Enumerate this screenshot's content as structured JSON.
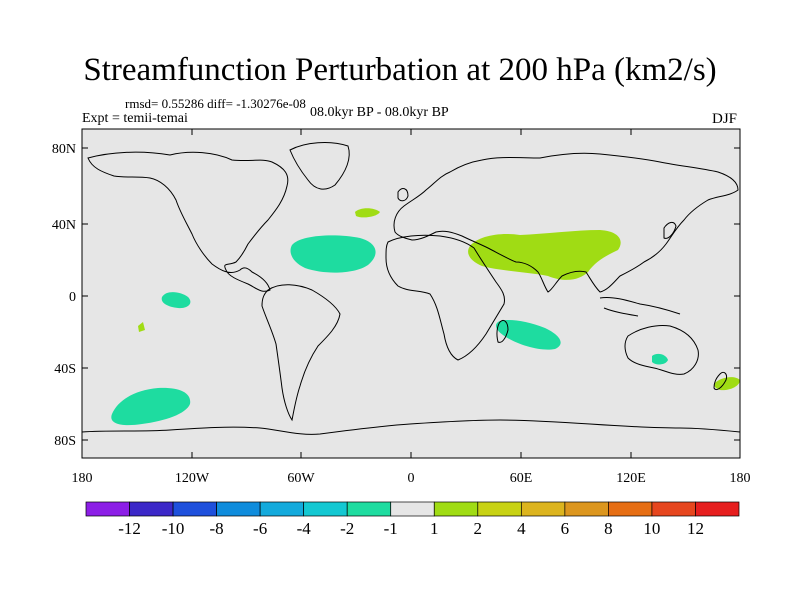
{
  "title": "Streamfunction Perturbation at 200 hPa (km2/s)",
  "stats": "rmsd= 0.55286 diff= -1.30276e-08",
  "experiment": "Expt = temii-temai",
  "period": "08.0kyr BP - 08.0kyr BP",
  "season": "DJF",
  "map": {
    "background_color": "#e6e6e6",
    "lat_labels": [
      "80N",
      "40N",
      "0",
      "40S",
      "80S"
    ],
    "lon_labels": [
      "180",
      "120W",
      "60W",
      "0",
      "60E",
      "120E",
      "180"
    ]
  },
  "colorbar": {
    "colors": [
      "#8c1ee6",
      "#3c28c8",
      "#1e50dc",
      "#0f8cdc",
      "#14aadc",
      "#14c8d2",
      "#1edca0",
      "#e6e6e6",
      "#a0dc14",
      "#c8d214",
      "#dcb41e",
      "#dc961e",
      "#e66e14",
      "#e6461e",
      "#e61e1e"
    ],
    "labels": [
      "-12",
      "-10",
      "-8",
      "-6",
      "-4",
      "-2",
      "-1",
      "1",
      "2",
      "4",
      "6",
      "8",
      "10",
      "12"
    ]
  }
}
